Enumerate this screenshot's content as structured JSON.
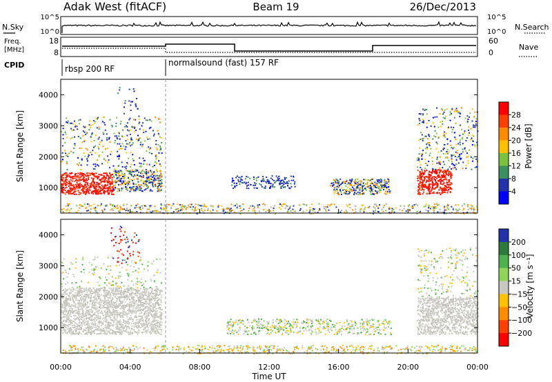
{
  "header": {
    "station": "Adak West (fitACF)",
    "beam": "Beam 19",
    "date": "26/Dec/2013"
  },
  "top_panels": {
    "nsky_label": "N.Sky",
    "nsearch_label": "N.Search",
    "count_ticks": [
      "10^5",
      "10^0"
    ],
    "freq_label_line1": "Freq.",
    "freq_label_line2": "[MHz]",
    "freq_ticks": [
      "18",
      "8"
    ],
    "nave_label": "Nave",
    "nave_ticks": [
      "60",
      "0"
    ],
    "cpid_label": "CPID",
    "cpid_segments": [
      {
        "label": "rbsp 200 RF",
        "start_hour": 0
      },
      {
        "label": "normalsound (fast) 157 RF",
        "start_hour": 6
      }
    ]
  },
  "chart_data": [
    {
      "type": "heatmap",
      "name": "power",
      "ylabel": "Slant Range [km]",
      "ylim": [
        180,
        4500
      ],
      "yticks": [
        "1000",
        "2000",
        "3000",
        "4000"
      ],
      "colorbar_label": "Power [dB]",
      "colorbar_ticks": [
        "28",
        "24",
        "20",
        "16",
        "12",
        "8",
        "4"
      ],
      "colors": [
        "#ff0000",
        "#ff4000",
        "#ff8c00",
        "#ffc000",
        "#7ac142",
        "#3c8f5f",
        "#2233aa",
        "#0000ff"
      ]
    },
    {
      "type": "heatmap",
      "name": "velocity",
      "ylabel": "Slant Range [km]",
      "ylim": [
        180,
        4500
      ],
      "yticks": [
        "1000",
        "2000",
        "3000",
        "4000"
      ],
      "colorbar_label": "Velocity [m s⁻¹]",
      "colorbar_ticks": [
        "200",
        "100",
        "50",
        "15",
        "−15",
        "−50",
        "−100",
        "−200"
      ],
      "colors": [
        "#2233aa",
        "#2f7a3a",
        "#4fb04f",
        "#8fd35a",
        "#c8c8c0",
        "#ffc000",
        "#ff8c00",
        "#ff4000",
        "#ff0000"
      ]
    }
  ],
  "time_axis": {
    "label": "Time UT",
    "ticks": [
      "00:00",
      "04:00",
      "08:00",
      "12:00",
      "16:00",
      "20:00",
      "00:00"
    ]
  }
}
